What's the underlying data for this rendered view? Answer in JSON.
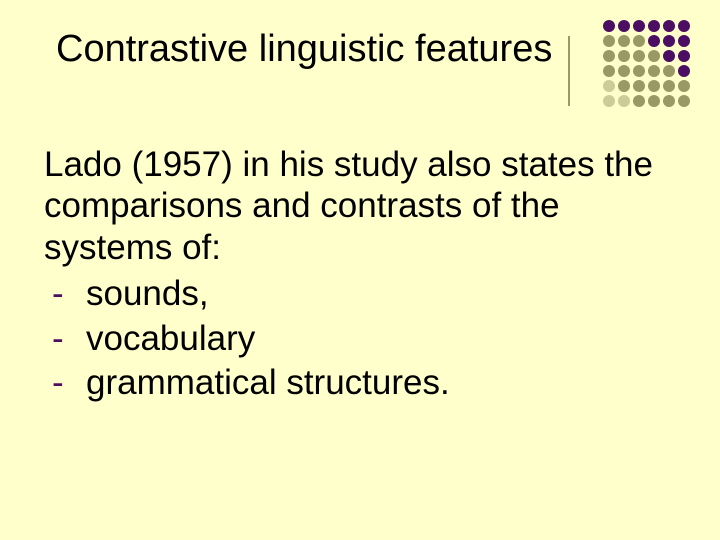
{
  "slide": {
    "background_color": "#ffffcc",
    "title": {
      "text": "Contrastive linguistic features",
      "color": "#000000",
      "fontsize": 38,
      "font_family": "Arial",
      "divider_color": "#999966"
    },
    "body": {
      "intro_text": "Lado (1957) in his study also states the comparisons and contrasts of the systems of:",
      "intro_color": "#000000",
      "intro_fontsize": 35,
      "bullet_char": "-",
      "bullet_color": "#4b0e63",
      "items": [
        "sounds,",
        "vocabulary",
        "grammatical structures."
      ],
      "item_color": "#000000",
      "item_fontsize": 35
    },
    "decoration": {
      "type": "dot-grid",
      "rows": 6,
      "cols": 6,
      "dot_size": 12,
      "gap": 3,
      "position": "top-right",
      "colors": [
        [
          "#4b0e63",
          "#4b0e63",
          "#4b0e63",
          "#4b0e63",
          "#4b0e63",
          "#4b0e63"
        ],
        [
          "#999966",
          "#999966",
          "#999966",
          "#4b0e63",
          "#4b0e63",
          "#4b0e63"
        ],
        [
          "#999966",
          "#999966",
          "#999966",
          "#999966",
          "#4b0e63",
          "#4b0e63"
        ],
        [
          "#999966",
          "#999966",
          "#999966",
          "#999966",
          "#999966",
          "#4b0e63"
        ],
        [
          "#cccc99",
          "#999966",
          "#999966",
          "#999966",
          "#999966",
          "#999966"
        ],
        [
          "#cccc99",
          "#cccc99",
          "#999966",
          "#999966",
          "#999966",
          "#999966"
        ]
      ]
    }
  }
}
